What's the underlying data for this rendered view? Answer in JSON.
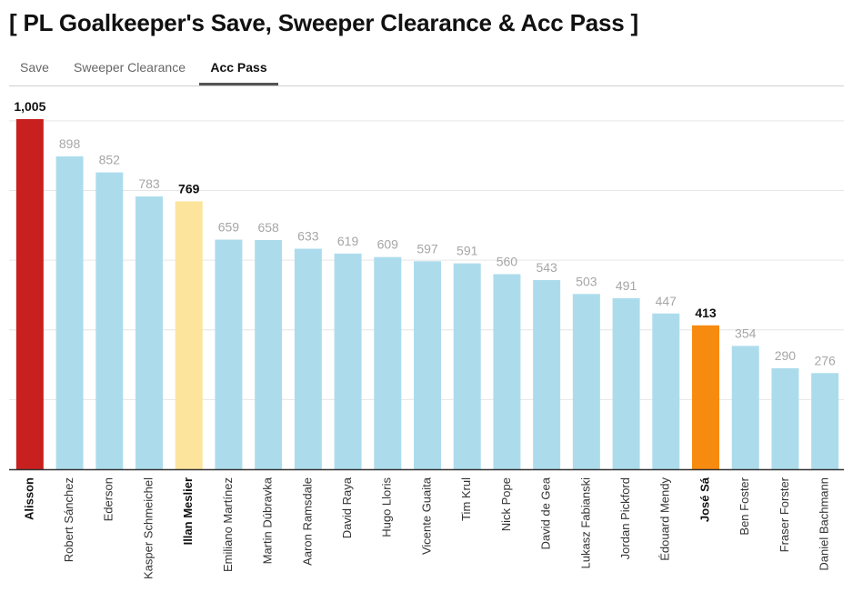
{
  "header": {
    "title": "[ PL Goalkeeper's Save, Sweeper Clearance & Acc Pass ]"
  },
  "tabs": [
    {
      "label": "Save",
      "active": false
    },
    {
      "label": "Sweeper Clearance",
      "active": false
    },
    {
      "label": "Acc Pass",
      "active": true
    }
  ],
  "colors": {
    "default_bar": "#acdcec",
    "alisson": "#c8201e",
    "illan_meslier": "#fde49c",
    "jose_sa": "#f68b10",
    "gridline": "#e6e6e6",
    "axis": "#333333"
  },
  "chart_data": {
    "type": "bar",
    "title": "",
    "xlabel": "",
    "ylabel": "",
    "ylim": [
      0,
      1005
    ],
    "grid": true,
    "categories": [
      "Alisson",
      "Robert Sánchez",
      "Ederson",
      "Kasper Schmeichel",
      "Illan Meslier",
      "Emiliano Martínez",
      "Martin Dúbravka",
      "Aaron Ramsdale",
      "David Raya",
      "Hugo Lloris",
      "Vicente Guaita",
      "Tim Krul",
      "Nick Pope",
      "David de Gea",
      "Lukasz Fabianski",
      "Jordan Pickford",
      "Édouard Mendy",
      "José Sá",
      "Ben Foster",
      "Fraser Forster",
      "Daniel Bachmann"
    ],
    "values": [
      1005,
      898,
      852,
      783,
      769,
      659,
      658,
      633,
      619,
      609,
      597,
      591,
      560,
      543,
      503,
      491,
      447,
      413,
      354,
      290,
      276
    ],
    "value_labels": [
      "1,005",
      "898",
      "852",
      "783",
      "769",
      "659",
      "658",
      "633",
      "619",
      "609",
      "597",
      "591",
      "560",
      "543",
      "503",
      "491",
      "447",
      "413",
      "354",
      "290",
      "276"
    ],
    "highlighted": [
      "Alisson",
      "Illan Meslier",
      "José Sá"
    ],
    "gridlines": [
      0,
      200,
      400,
      600,
      800,
      1000
    ]
  }
}
